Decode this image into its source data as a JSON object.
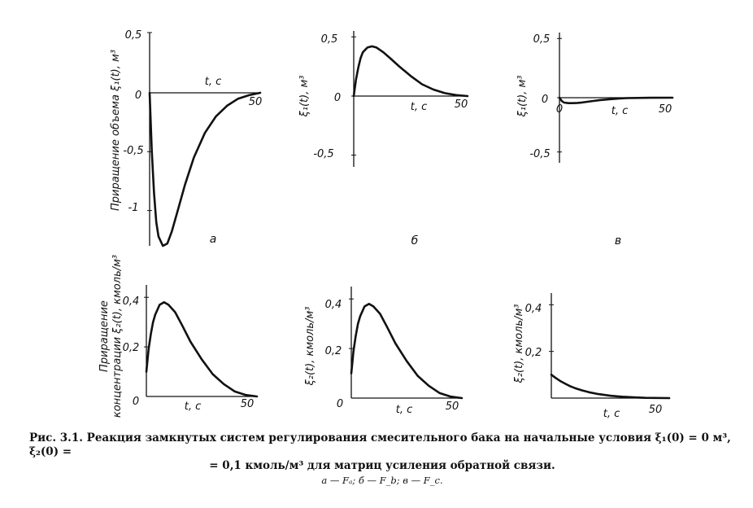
{
  "chart_data": [
    {
      "type": "line",
      "panel": "а",
      "ylabel": "Приращение  объема ξ₁(t), м³",
      "xlabel": "t, c",
      "xlim": [
        0,
        50
      ],
      "ylim": [
        -1.3,
        0.5
      ],
      "xticks": [
        "0",
        "50"
      ],
      "yticks": [
        "0,5",
        "-0,5",
        "-1"
      ],
      "series": [
        {
          "x": [
            0,
            1,
            2,
            3,
            4,
            6,
            8,
            10,
            13,
            16,
            20,
            25,
            30,
            35,
            40,
            45,
            50
          ],
          "y": [
            0,
            -0.5,
            -0.85,
            -1.1,
            -1.22,
            -1.3,
            -1.28,
            -1.18,
            -0.98,
            -0.78,
            -0.55,
            -0.34,
            -0.2,
            -0.11,
            -0.05,
            -0.02,
            0
          ]
        }
      ]
    },
    {
      "type": "line",
      "panel": "б",
      "ylabel": "ξ₁(t),  м³",
      "xlabel": "t, c",
      "xlim": [
        0,
        50
      ],
      "ylim": [
        -0.6,
        0.55
      ],
      "xticks": [
        "50"
      ],
      "yticks": [
        "0,5",
        "0",
        "-0,5"
      ],
      "series": [
        {
          "x": [
            0,
            1,
            2,
            3,
            4,
            6,
            8,
            10,
            13,
            16,
            20,
            25,
            30,
            35,
            40,
            45,
            50
          ],
          "y": [
            0,
            0.14,
            0.24,
            0.32,
            0.37,
            0.41,
            0.42,
            0.41,
            0.37,
            0.32,
            0.25,
            0.17,
            0.1,
            0.055,
            0.025,
            0.008,
            0
          ]
        }
      ]
    },
    {
      "type": "line",
      "panel": "в",
      "ylabel": "ξ₁(t),  м³",
      "xlabel": "t, c",
      "xlim": [
        0,
        50
      ],
      "ylim": [
        -0.6,
        0.55
      ],
      "xticks": [
        "0",
        "50"
      ],
      "yticks": [
        "0,5",
        "0",
        "-0,5"
      ],
      "series": [
        {
          "x": [
            0,
            1,
            2,
            4,
            6,
            8,
            10,
            12,
            15,
            18,
            22,
            26,
            30,
            40,
            50
          ],
          "y": [
            0,
            -0.03,
            -0.045,
            -0.05,
            -0.05,
            -0.048,
            -0.044,
            -0.038,
            -0.03,
            -0.022,
            -0.014,
            -0.008,
            -0.004,
            -0.001,
            0
          ]
        }
      ]
    },
    {
      "type": "line",
      "panel": "",
      "ylabel": "Приращение концентрации ξ₂(t), кмоль/м³",
      "xlabel": "t, c",
      "xlim": [
        0,
        50
      ],
      "ylim": [
        0,
        0.45
      ],
      "xticks": [
        "0",
        "50"
      ],
      "yticks": [
        "0,4",
        "0,2"
      ],
      "series": [
        {
          "x": [
            0,
            1,
            2,
            3,
            4,
            6,
            8,
            10,
            13,
            16,
            20,
            25,
            30,
            35,
            40,
            45,
            50
          ],
          "y": [
            0.1,
            0.19,
            0.25,
            0.3,
            0.33,
            0.37,
            0.38,
            0.37,
            0.34,
            0.29,
            0.22,
            0.15,
            0.09,
            0.05,
            0.02,
            0.006,
            0
          ]
        }
      ]
    },
    {
      "type": "line",
      "panel": "",
      "ylabel": "ξ₂(t),  кмоль/м³",
      "xlabel": "t, c",
      "xlim": [
        0,
        50
      ],
      "ylim": [
        0,
        0.45
      ],
      "xticks": [
        "0",
        "50"
      ],
      "yticks": [
        "0,4",
        "0,2"
      ],
      "series": [
        {
          "x": [
            0,
            1,
            2,
            3,
            4,
            6,
            8,
            10,
            13,
            16,
            20,
            25,
            30,
            35,
            40,
            45,
            50
          ],
          "y": [
            0.1,
            0.19,
            0.25,
            0.3,
            0.33,
            0.37,
            0.38,
            0.37,
            0.34,
            0.29,
            0.22,
            0.15,
            0.09,
            0.05,
            0.02,
            0.006,
            0
          ]
        }
      ]
    },
    {
      "type": "line",
      "panel": "",
      "ylabel": "ξ₂(t),  кмоль/м³",
      "xlabel": "t, c",
      "xlim": [
        0,
        50
      ],
      "ylim": [
        0,
        0.45
      ],
      "xticks": [
        "50"
      ],
      "yticks": [
        "0,4",
        "0,2"
      ],
      "series": [
        {
          "x": [
            0,
            2,
            4,
            6,
            8,
            10,
            13,
            16,
            20,
            25,
            30,
            35,
            40,
            50
          ],
          "y": [
            0.1,
            0.085,
            0.072,
            0.061,
            0.051,
            0.043,
            0.033,
            0.025,
            0.017,
            0.01,
            0.006,
            0.003,
            0.001,
            0
          ]
        }
      ]
    }
  ],
  "caption": {
    "line1": "Рис. 3.1. Реакция замкнутых систем регулирования смесительного бака на начальные условия ξ₁(0) = 0 м³, ξ₂(0) =",
    "line2": "= 0,1 кмоль/м³ для матриц усиления обратной связи.",
    "line3": "а — Fₐ;  б — F_b;  в — F_c."
  }
}
